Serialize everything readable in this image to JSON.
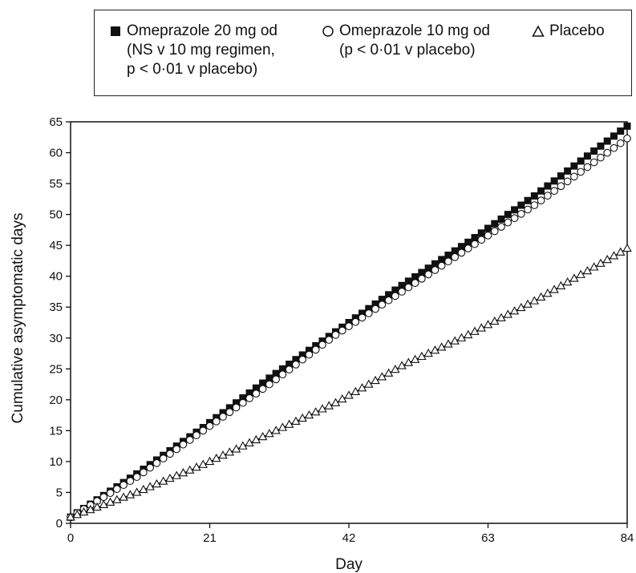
{
  "chart_data": {
    "type": "scatter",
    "title": "",
    "xlabel": "Day",
    "ylabel": "Cumulative asymptomatic days",
    "xlim": [
      0,
      84
    ],
    "ylim": [
      0,
      65
    ],
    "xticks": [
      0,
      21,
      42,
      63,
      84
    ],
    "yticks": [
      0,
      5,
      10,
      15,
      20,
      25,
      30,
      35,
      40,
      45,
      50,
      55,
      60,
      65
    ],
    "grid": false,
    "legend_position": "top",
    "series": [
      {
        "name": "Omeprazole 20 mg od",
        "note_lines": [
          "(NS v 10 mg regimen,",
          "p < 0·01 v placebo)"
        ],
        "marker": "filled-square",
        "color": "#111111",
        "x": [
          0,
          10,
          20,
          30,
          40,
          50,
          60,
          70,
          84
        ],
        "y": [
          1,
          8,
          15.5,
          23.5,
          31,
          38.5,
          45.5,
          53,
          64.3
        ]
      },
      {
        "name": "Omeprazole 10 mg od",
        "note_lines": [
          "(p < 0·01 v placebo)"
        ],
        "marker": "open-circle",
        "color": "#111111",
        "x": [
          0,
          10,
          20,
          30,
          40,
          50,
          60,
          70,
          84
        ],
        "y": [
          1,
          7.5,
          15,
          22.5,
          30.5,
          37.5,
          44.5,
          51.5,
          62.3
        ]
      },
      {
        "name": "Placebo",
        "note_lines": [],
        "marker": "open-triangle",
        "color": "#111111",
        "x": [
          0,
          10,
          20,
          30,
          40,
          50,
          60,
          70,
          84
        ],
        "y": [
          1,
          5,
          9.5,
          14.5,
          19.5,
          25.5,
          30.5,
          36,
          44.5
        ]
      }
    ]
  }
}
